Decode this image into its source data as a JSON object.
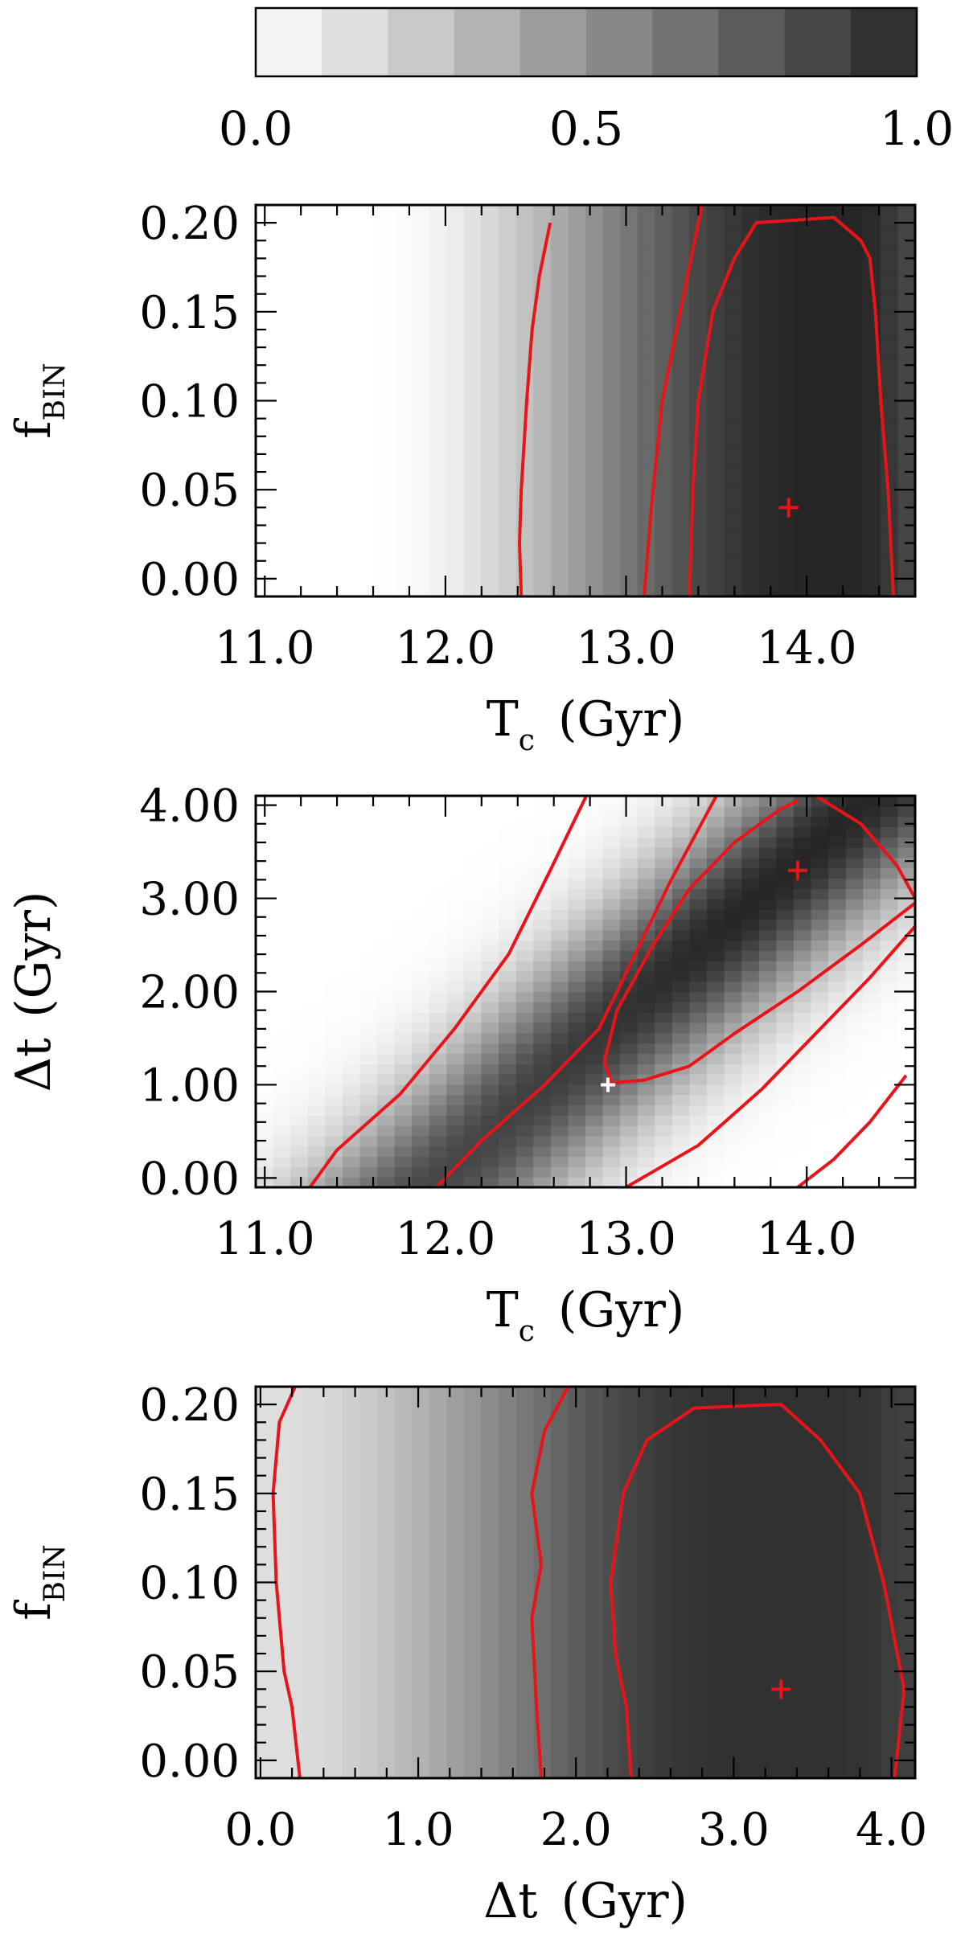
{
  "colors": {
    "contour": "#e8141a",
    "best_marker": "#e8141a",
    "alt_marker": "#ffffff",
    "frame": "#000000",
    "background": "#ffffff"
  },
  "colorbar": {
    "min": 0.0,
    "max": 1.0,
    "levels": 10,
    "tick_labels": [
      "0.0",
      "0.5",
      "1.0"
    ],
    "orientation": "horizontal",
    "placement": "top"
  },
  "chart_data": [
    {
      "type": "heatmap",
      "title": "",
      "xlabel_main": "T",
      "xlabel_sub": "c",
      "xlabel_unit": "(Gyr)",
      "ylabel_main": "f",
      "ylabel_sub": "BIN",
      "ylabel_unit": "",
      "xlim": [
        10.95,
        14.6
      ],
      "ylim": [
        -0.01,
        0.21
      ],
      "xticks": [
        11.0,
        12.0,
        13.0,
        14.0
      ],
      "xtick_labels": [
        "11.0",
        "12.0",
        "13.0",
        "14.0"
      ],
      "yticks": [
        0.0,
        0.05,
        0.1,
        0.15,
        0.2
      ],
      "ytick_labels": [
        "0.00",
        "0.05",
        "0.10",
        "0.15",
        "0.20"
      ],
      "best_fit": [
        13.9,
        0.04
      ],
      "contours": [
        [
          [
            12.42,
            -0.01
          ],
          [
            12.41,
            0.02
          ],
          [
            12.42,
            0.05
          ],
          [
            12.45,
            0.1
          ],
          [
            12.48,
            0.14
          ],
          [
            12.52,
            0.17
          ],
          [
            12.58,
            0.2
          ]
        ],
        [
          [
            13.1,
            -0.01
          ],
          [
            13.14,
            0.04
          ],
          [
            13.2,
            0.1
          ],
          [
            13.3,
            0.15
          ],
          [
            13.38,
            0.19
          ],
          [
            13.42,
            0.21
          ]
        ],
        [
          [
            13.35,
            -0.01
          ],
          [
            13.37,
            0.05
          ],
          [
            13.4,
            0.1
          ],
          [
            13.48,
            0.15
          ],
          [
            13.6,
            0.18
          ],
          [
            13.72,
            0.2
          ],
          [
            14.15,
            0.203
          ],
          [
            14.3,
            0.19
          ],
          [
            14.35,
            0.18
          ],
          [
            14.38,
            0.15
          ],
          [
            14.41,
            0.1
          ],
          [
            14.45,
            0.05
          ],
          [
            14.48,
            -0.01
          ]
        ]
      ]
    },
    {
      "type": "heatmap",
      "title": "",
      "xlabel_main": "T",
      "xlabel_sub": "c",
      "xlabel_unit": "(Gyr)",
      "ylabel_main": "Δt",
      "ylabel_sub": "",
      "ylabel_unit": "(Gyr)",
      "xlim": [
        10.95,
        14.6
      ],
      "ylim": [
        -0.1,
        4.1
      ],
      "xticks": [
        11.0,
        12.0,
        13.0,
        14.0
      ],
      "xtick_labels": [
        "11.0",
        "12.0",
        "13.0",
        "14.0"
      ],
      "yticks": [
        0.0,
        1.0,
        2.0,
        3.0,
        4.0
      ],
      "ytick_labels": [
        "0.00",
        "1.00",
        "2.00",
        "3.00",
        "4.00"
      ],
      "best_fit": [
        13.95,
        3.3
      ],
      "alt_fit": [
        12.9,
        1.0
      ],
      "contours": [
        [
          [
            11.25,
            -0.1
          ],
          [
            11.4,
            0.3
          ],
          [
            11.75,
            0.9
          ],
          [
            12.05,
            1.6
          ],
          [
            12.35,
            2.4
          ],
          [
            12.58,
            3.3
          ],
          [
            12.78,
            4.1
          ]
        ],
        [
          [
            11.95,
            -0.1
          ],
          [
            12.2,
            0.4
          ],
          [
            12.55,
            1.0
          ],
          [
            12.85,
            1.6
          ],
          [
            13.05,
            2.4
          ],
          [
            13.25,
            3.2
          ],
          [
            13.5,
            4.1
          ]
        ],
        [
          [
            12.92,
            1.02
          ],
          [
            13.1,
            1.05
          ],
          [
            13.35,
            1.2
          ],
          [
            13.6,
            1.55
          ],
          [
            13.95,
            2.0
          ],
          [
            14.3,
            2.5
          ],
          [
            14.6,
            2.95
          ]
        ],
        [
          [
            12.92,
            1.02
          ],
          [
            12.88,
            1.25
          ],
          [
            12.95,
            1.8
          ],
          [
            13.15,
            2.5
          ],
          [
            13.35,
            3.1
          ],
          [
            13.6,
            3.6
          ],
          [
            13.85,
            3.95
          ],
          [
            13.95,
            4.05
          ]
        ],
        [
          [
            13.0,
            -0.1
          ],
          [
            13.4,
            0.35
          ],
          [
            13.75,
            0.95
          ],
          [
            14.05,
            1.55
          ],
          [
            14.35,
            2.15
          ],
          [
            14.6,
            2.7
          ]
        ],
        [
          [
            13.95,
            -0.1
          ],
          [
            14.15,
            0.2
          ],
          [
            14.35,
            0.6
          ],
          [
            14.55,
            1.1
          ]
        ],
        [
          [
            14.05,
            4.1
          ],
          [
            14.3,
            3.8
          ],
          [
            14.5,
            3.35
          ],
          [
            14.6,
            3.0
          ]
        ]
      ]
    },
    {
      "type": "heatmap",
      "title": "",
      "xlabel_main": "Δt",
      "xlabel_sub": "",
      "xlabel_unit": "(Gyr)",
      "ylabel_main": "f",
      "ylabel_sub": "BIN",
      "ylabel_unit": "",
      "xlim": [
        -0.03,
        4.15
      ],
      "ylim": [
        -0.01,
        0.21
      ],
      "xticks": [
        0.0,
        1.0,
        2.0,
        3.0,
        4.0
      ],
      "xtick_labels": [
        "0.0",
        "1.0",
        "2.0",
        "3.0",
        "4.0"
      ],
      "yticks": [
        0.0,
        0.05,
        0.1,
        0.15,
        0.2
      ],
      "ytick_labels": [
        "0.00",
        "0.05",
        "0.10",
        "0.15",
        "0.20"
      ],
      "best_fit": [
        3.3,
        0.04
      ],
      "contours": [
        [
          [
            0.22,
            0.21
          ],
          [
            0.12,
            0.19
          ],
          [
            0.08,
            0.15
          ],
          [
            0.1,
            0.1
          ],
          [
            0.15,
            0.05
          ],
          [
            0.2,
            0.03
          ],
          [
            0.25,
            -0.01
          ]
        ],
        [
          [
            1.95,
            0.21
          ],
          [
            1.8,
            0.185
          ],
          [
            1.72,
            0.15
          ],
          [
            1.78,
            0.11
          ],
          [
            1.72,
            0.08
          ],
          [
            1.75,
            0.03
          ],
          [
            1.78,
            -0.01
          ]
        ],
        [
          [
            2.35,
            -0.01
          ],
          [
            2.32,
            0.03
          ],
          [
            2.25,
            0.06
          ],
          [
            2.22,
            0.1
          ],
          [
            2.3,
            0.15
          ],
          [
            2.45,
            0.18
          ],
          [
            2.75,
            0.198
          ],
          [
            3.3,
            0.2
          ],
          [
            3.55,
            0.18
          ],
          [
            3.8,
            0.15
          ],
          [
            3.95,
            0.1
          ],
          [
            4.08,
            0.04
          ],
          [
            4.02,
            -0.01
          ]
        ]
      ]
    }
  ]
}
